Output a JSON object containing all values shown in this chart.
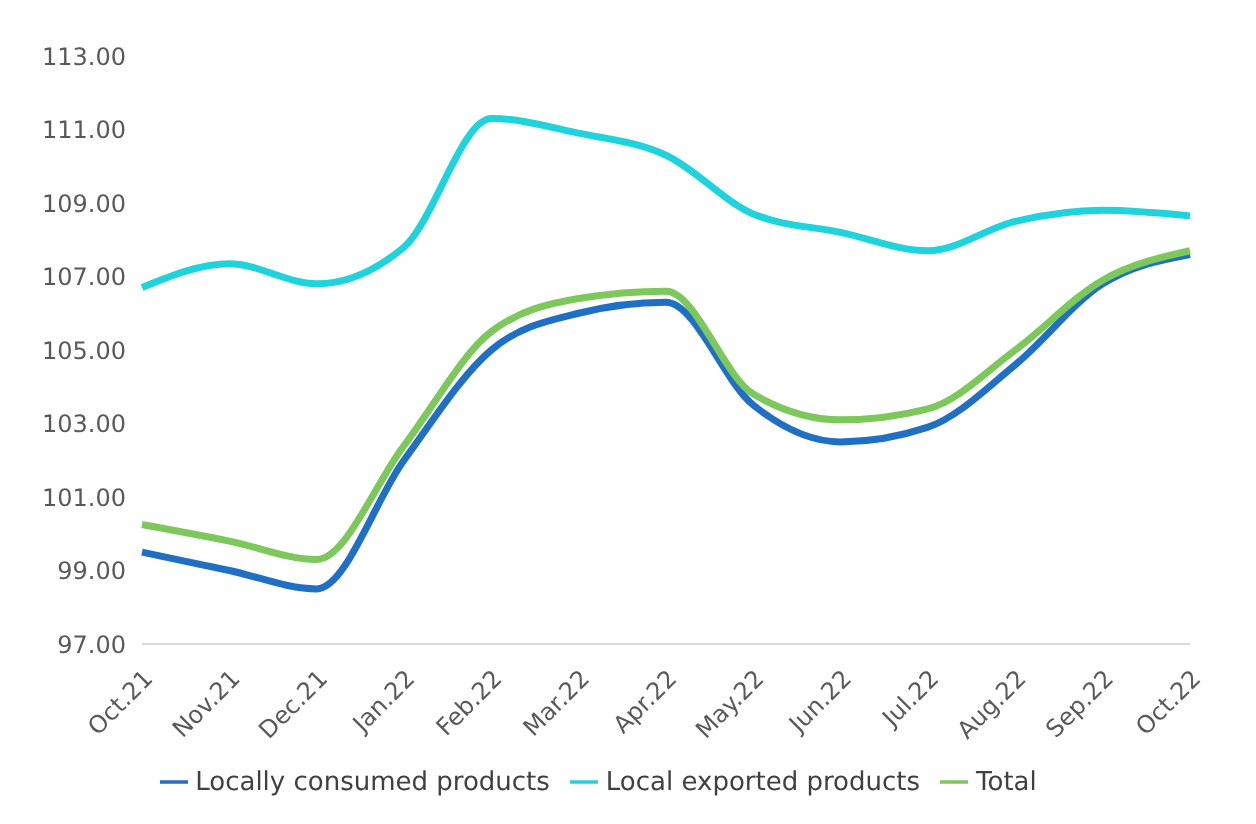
{
  "chart_data": {
    "type": "line",
    "categories": [
      "Oct.21",
      "Nov.21",
      "Dec.21",
      "Jan.22",
      "Feb.22",
      "Mar.22",
      "Apr.22",
      "May.22",
      "Jun.22",
      "Jul.22",
      "Aug.22",
      "Sep.22",
      "Oct.22"
    ],
    "series": [
      {
        "name": "Locally consumed products",
        "color": "#1f6fc5",
        "values": [
          99.5,
          99.0,
          98.5,
          102.0,
          105.0,
          106.0,
          106.3,
          103.5,
          102.5,
          102.9,
          104.6,
          106.8,
          107.6
        ]
      },
      {
        "name": "Local exported products",
        "color": "#1fd3dc",
        "values": [
          106.7,
          107.35,
          106.8,
          107.8,
          111.3,
          110.9,
          110.3,
          108.7,
          108.2,
          107.7,
          108.5,
          108.8,
          108.65
        ]
      },
      {
        "name": "Total",
        "color": "#7dc85a",
        "values": [
          100.25,
          99.8,
          99.3,
          102.4,
          105.5,
          106.4,
          106.6,
          103.8,
          103.1,
          103.4,
          105.0,
          106.9,
          107.7
        ]
      }
    ],
    "ylim": [
      97,
      113
    ],
    "yticks": [
      {
        "value": 97,
        "label": "97.00"
      },
      {
        "value": 99,
        "label": "99.00"
      },
      {
        "value": 101,
        "label": "101.00"
      },
      {
        "value": 103,
        "label": "103.00"
      },
      {
        "value": 105,
        "label": "105.00"
      },
      {
        "value": 107,
        "label": "107.00"
      },
      {
        "value": 109,
        "label": "109.00"
      },
      {
        "value": 111,
        "label": "111.00"
      },
      {
        "value": 113,
        "label": "113.00"
      }
    ],
    "grid": false,
    "legend": "bottom",
    "marker": "none",
    "line_style": "solid"
  }
}
